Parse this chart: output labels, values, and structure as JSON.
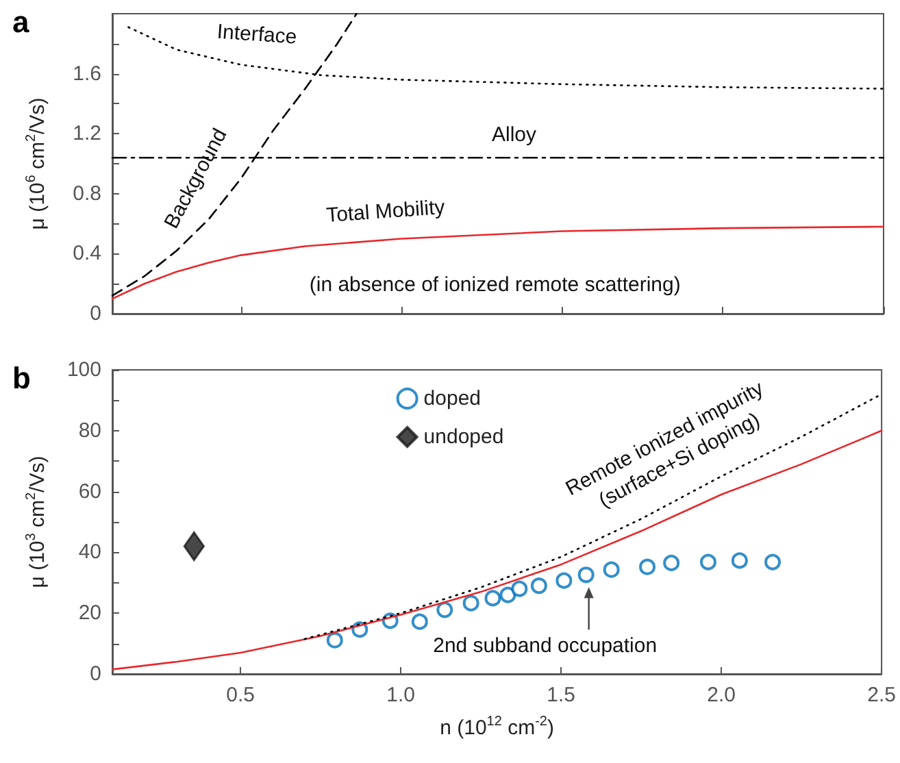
{
  "chart_data": [
    {
      "type": "line",
      "title": "a",
      "ylabel": "μ (10$^{6}$ cm$^{2}$/Vs)",
      "xlim": [
        0.1,
        2.5
      ],
      "xticks": [
        0.5,
        1,
        1.5,
        2,
        2.5
      ],
      "ylim": [
        0,
        2.0
      ],
      "yticks": [
        0,
        {
          "value": 0.2,
          "label": null
        },
        0.4,
        {
          "value": 0.6,
          "label": null
        },
        0.8,
        {
          "value": 1.0,
          "label": null
        },
        1.2,
        {
          "value": 1.4,
          "label": null
        },
        1.6,
        {
          "value": 1.8,
          "label": null
        }
      ],
      "tick_labels": "y",
      "legend": false,
      "marker": "none",
      "annotations": [
        "(in absence of ionized remote scattering)"
      ],
      "series": [
        {
          "name": "Interface",
          "color": "#000000",
          "line_style": "dotted",
          "x": [
            0.15,
            0.3,
            0.5,
            0.75,
            1.0,
            1.5,
            2.0,
            2.5
          ],
          "values": [
            1.91,
            1.76,
            1.66,
            1.59,
            1.56,
            1.53,
            1.51,
            1.5
          ]
        },
        {
          "name": "Background",
          "color": "#000000",
          "line_style": "dashed",
          "x": [
            0.1,
            0.2,
            0.3,
            0.4,
            0.5,
            0.6,
            0.7,
            0.8,
            0.86
          ],
          "values": [
            0.12,
            0.25,
            0.42,
            0.63,
            0.9,
            1.22,
            1.5,
            1.8,
            2.0
          ]
        },
        {
          "name": "Alloy",
          "color": "#000000",
          "line_style": "dashdot",
          "x": [
            0.1,
            2.5
          ],
          "values": [
            1.04,
            1.04
          ]
        },
        {
          "name": "Total Mobility",
          "color": "#e8282b",
          "line_style": "solid",
          "x": [
            0.1,
            0.2,
            0.3,
            0.4,
            0.5,
            0.7,
            1.0,
            1.5,
            2.0,
            2.5
          ],
          "values": [
            0.1,
            0.2,
            0.28,
            0.34,
            0.39,
            0.45,
            0.5,
            0.55,
            0.57,
            0.58
          ]
        }
      ]
    },
    {
      "type": "line",
      "title": "b",
      "xlabel": "n (10$^{12}$ cm$^{-2}$)",
      "ylabel": "μ (10$^{3}$ cm$^{2}$/Vs)",
      "xlim": [
        0.1,
        2.5
      ],
      "xticks": [
        0.5,
        {
          "value": 1,
          "label": "1.0"
        },
        1.5,
        {
          "value": 2,
          "label": "2.0"
        },
        2.5
      ],
      "ylim": [
        0,
        100
      ],
      "yticks": [
        0,
        {
          "value": 10,
          "label": null
        },
        20,
        {
          "value": 30,
          "label": null
        },
        40,
        {
          "value": 50,
          "label": null
        },
        60,
        {
          "value": 70,
          "label": null
        },
        80,
        {
          "value": 90,
          "label": null
        },
        100
      ],
      "legend": "top",
      "annotations": [
        {
          "text": "2nd subband occupation",
          "x": 1.578,
          "y": 32.6
        }
      ],
      "series": [
        {
          "name": "doped",
          "type": "scatter",
          "marker": "circle",
          "color": "#0072bd",
          "x": [
            0.794,
            0.872,
            0.967,
            1.059,
            1.137,
            1.219,
            1.287,
            1.334,
            1.37,
            1.431,
            1.509,
            1.578,
            1.657,
            1.769,
            1.844,
            1.959,
            2.057,
            2.16
          ],
          "values": [
            11.1,
            14.6,
            17.5,
            17.2,
            21.1,
            23.3,
            24.9,
            26.0,
            28.0,
            29.0,
            30.7,
            32.6,
            34.3,
            35.2,
            36.5,
            36.8,
            37.3,
            36.8
          ]
        },
        {
          "name": "undoped",
          "type": "scatter",
          "marker": "diamond",
          "color": "#1a1a1a",
          "x": [
            0.355
          ],
          "values": [
            42
          ]
        },
        {
          "marker": "none",
          "line_style": "solid",
          "color": "#e8282b",
          "x": [
            0.1,
            0.3,
            0.5,
            0.75,
            1.0,
            1.25,
            1.5,
            1.75,
            2.0,
            2.25,
            2.5
          ],
          "values": [
            1.5,
            4,
            7,
            12.5,
            19.5,
            27,
            36,
            47,
            59,
            69,
            80
          ]
        },
        {
          "name": "Remote ionized impurity (surface+Si doping)",
          "marker": "none",
          "line_style": "dotted",
          "color": "#000000",
          "x": [
            0.7,
            1.0,
            1.25,
            1.5,
            1.75,
            2.0,
            2.25,
            2.5
          ],
          "values": [
            11.5,
            20,
            28.5,
            38.5,
            51,
            65,
            78,
            92
          ]
        }
      ]
    }
  ]
}
